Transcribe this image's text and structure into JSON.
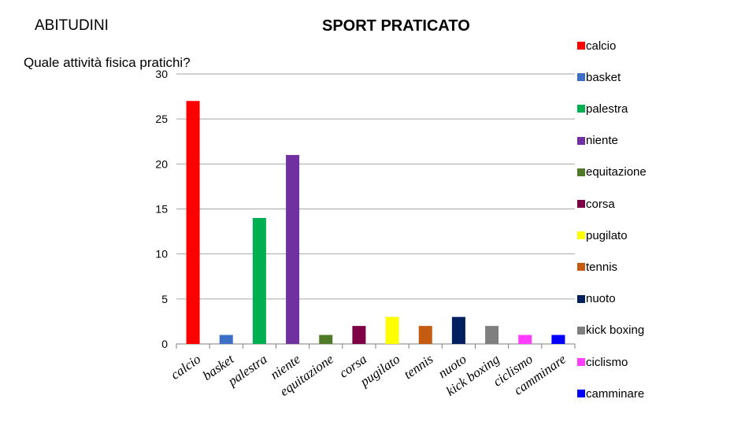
{
  "header": {
    "section": "ABITUDINI",
    "title": "SPORT PRATICATO",
    "question": "Quale attività fisica pratichi?"
  },
  "chart_data": {
    "type": "bar",
    "title": "SPORT PRATICATO",
    "categories": [
      "calcio",
      "basket",
      "palestra",
      "niente",
      "equitazione",
      "corsa",
      "pugilato",
      "tennis",
      "nuoto",
      "kick boxing",
      "ciclismo",
      "camminare"
    ],
    "series": [
      {
        "values": [
          27,
          1,
          14,
          21,
          1,
          2,
          3,
          2,
          3,
          2,
          1,
          1
        ]
      }
    ],
    "colors": [
      "#ff0000",
      "#3e6fc6",
      "#00b050",
      "#7030a0",
      "#4f7a28",
      "#7f0045",
      "#ffff00",
      "#c55a11",
      "#002060",
      "#7f7f7f",
      "#ff3cff",
      "#0000ff"
    ],
    "ylim": [
      0,
      30
    ],
    "yticks": [
      0,
      5,
      10,
      15,
      20,
      25,
      30
    ],
    "grid": true,
    "legend_position": "right"
  }
}
